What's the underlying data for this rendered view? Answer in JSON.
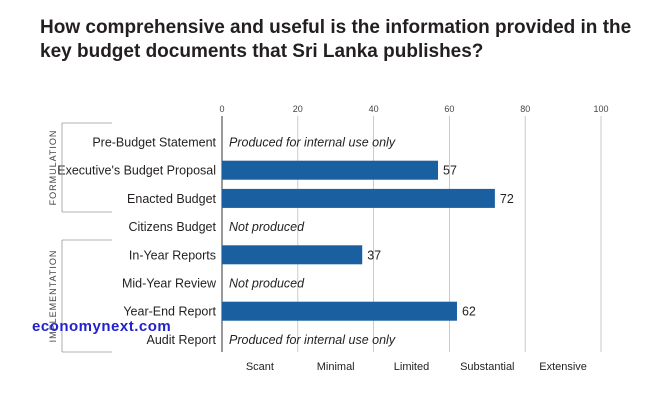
{
  "title": "How comprehensive and useful is the information provided in the key budget documents that Sri Lanka publishes?",
  "watermark": "economynext.com",
  "colors": {
    "bar": "#1a5fa0",
    "grid": "#bdbdbd",
    "text": "#231f20"
  },
  "chart_data": {
    "type": "bar",
    "orientation": "horizontal",
    "title": "How comprehensive and useful is the information provided in the key budget documents that Sri Lanka publishes?",
    "xlim": [
      0,
      100
    ],
    "x_ticks": [
      "0",
      "20",
      "40",
      "60",
      "80",
      "100"
    ],
    "grid": true,
    "bands": [
      "Scant",
      "Minimal",
      "Limited",
      "Substantial",
      "Extensive"
    ],
    "sections": [
      {
        "name": "FORMULATION",
        "categories": [
          "Pre-Budget Statement",
          "Executive's Budget Proposal",
          "Enacted Budget",
          "Citizens Budget"
        ]
      },
      {
        "name": "IMPLEMENTATION",
        "categories": [
          "In-Year Reports",
          "Mid-Year Review",
          "Year-End Report",
          "Audit Report"
        ]
      }
    ],
    "categories": [
      "Pre-Budget Statement",
      "Executive's Budget Proposal",
      "Enacted Budget",
      "Citizens Budget",
      "In-Year Reports",
      "Mid-Year Review",
      "Year-End Report",
      "Audit Report"
    ],
    "values": [
      null,
      57,
      72,
      null,
      37,
      null,
      62,
      null
    ],
    "value_labels": [
      "",
      "57",
      "72",
      "",
      "37",
      "",
      "62",
      ""
    ],
    "notes": [
      "Produced for internal use only",
      "",
      "",
      "Not produced",
      "",
      "Not produced",
      "",
      "Produced for internal use only"
    ]
  }
}
